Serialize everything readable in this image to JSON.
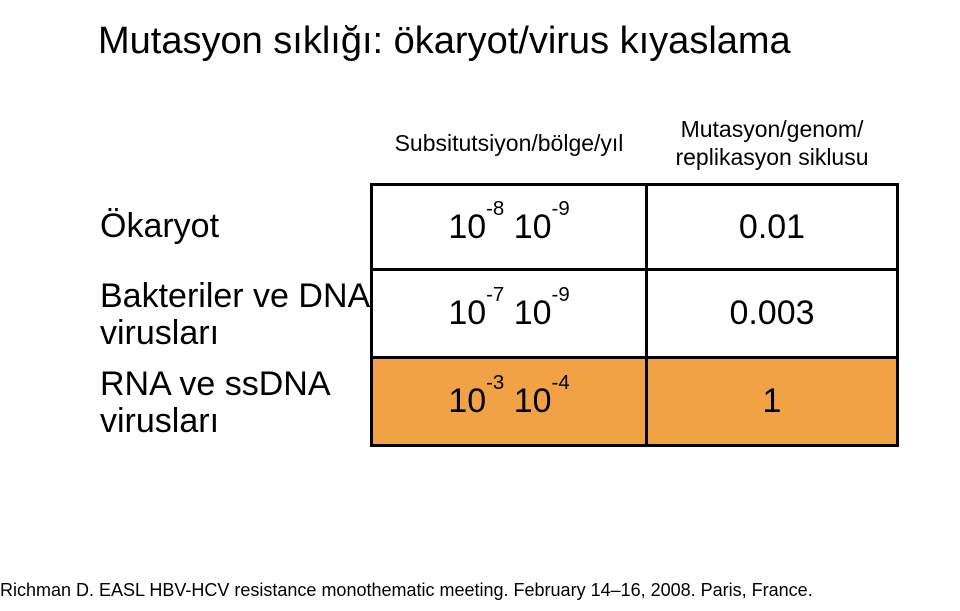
{
  "title": "Mutasyon sıklığı: ökaryot/virus kıyaslama",
  "columns": {
    "c0": "Subsitutsiyon/bölge/yıl",
    "c1": "Mutasyon/genom/ replikasyon siklusu"
  },
  "rows": [
    {
      "label": "Ökaryot",
      "sub": {
        "base": "10",
        "e1": "-8",
        "mid": " 10",
        "e2": "-9"
      },
      "val": "0.01",
      "highlight": false
    },
    {
      "label": "Bakteriler ve DNA virusları",
      "sub": {
        "base": "10",
        "e1": "-7",
        "mid": " 10",
        "e2": "-9"
      },
      "val": "0.003",
      "highlight": false
    },
    {
      "label": "RNA ve ssDNA virusları",
      "sub": {
        "base": "10",
        "e1": "-3",
        "mid": " 10",
        "e2": "-4"
      },
      "val": "1",
      "highlight": true
    }
  ],
  "footer": "Richman D. EASL HBV-HCV resistance monothematic meeting. February 14–16, 2008. Paris, France.",
  "colors": {
    "highlight_bg": "#f0a244",
    "fg": "#000000",
    "bg": "#ffffff",
    "border": "#000000"
  },
  "fontsizes": {
    "title": 38,
    "header": 23,
    "body": 34,
    "footer": 18
  }
}
